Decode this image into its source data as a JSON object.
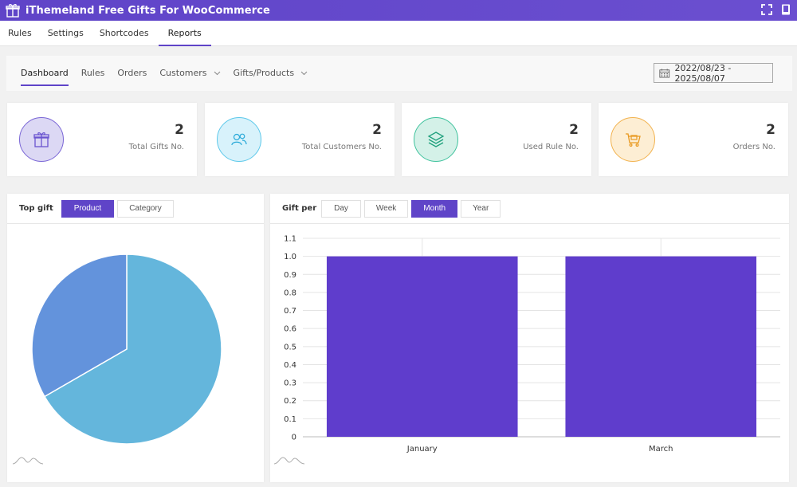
{
  "app": {
    "title": "iThemeland Free Gifts For WooCommerce"
  },
  "main_nav": [
    {
      "label": "Rules"
    },
    {
      "label": "Settings"
    },
    {
      "label": "Shortcodes"
    },
    {
      "label": "Reports",
      "active": true
    }
  ],
  "sub_nav": [
    {
      "label": "Dashboard",
      "active": true
    },
    {
      "label": "Rules"
    },
    {
      "label": "Orders"
    },
    {
      "label": "Customers",
      "dropdown": true
    },
    {
      "label": "Gifts/Products",
      "dropdown": true
    }
  ],
  "date_range": "2022/08/23 - 2025/08/07",
  "stats": [
    {
      "value": "2",
      "label": "Total Gifts No.",
      "icon": "gift-icon",
      "color": "#5f44c8"
    },
    {
      "value": "2",
      "label": "Total Customers No.",
      "icon": "users-icon",
      "color": "#29b6e0"
    },
    {
      "value": "2",
      "label": "Used Rule No.",
      "icon": "layers-icon",
      "color": "#1fae88"
    },
    {
      "value": "2",
      "label": "Orders No.",
      "icon": "cart-icon",
      "color": "#f0a030"
    }
  ],
  "top_gift": {
    "label": "Top gift",
    "tabs": [
      "Product",
      "Category"
    ],
    "active_tab": "Product"
  },
  "gift_per": {
    "label": "Gift per",
    "tabs": [
      "Day",
      "Week",
      "Month",
      "Year"
    ],
    "active_tab": "Month"
  },
  "chart_data": [
    {
      "type": "pie",
      "slices": [
        {
          "value": 2,
          "color": "#64b6dc"
        },
        {
          "value": 1,
          "color": "#6393dc"
        }
      ]
    },
    {
      "type": "bar",
      "categories": [
        "January",
        "March"
      ],
      "values": [
        1.0,
        1.0
      ],
      "ylim": [
        0,
        1.1
      ],
      "yticks": [
        "0",
        "0.1",
        "0.2",
        "0.3",
        "0.4",
        "0.5",
        "0.6",
        "0.7",
        "0.8",
        "0.9",
        "1.0",
        "1.1"
      ],
      "grid": true,
      "color": "#5f3dcc"
    }
  ]
}
